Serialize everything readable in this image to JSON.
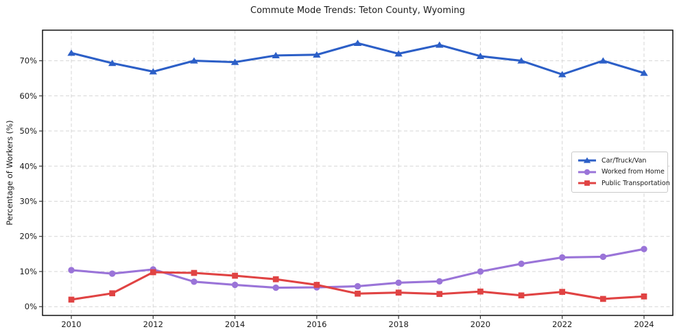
{
  "title": "Commute Mode Trends: Teton County, Wyoming",
  "chart_data": {
    "type": "line",
    "title": "Commute Mode Trends: Teton County, Wyoming",
    "xlabel": "",
    "ylabel": "Percentage of Workers (%)",
    "x": [
      2010,
      2011,
      2012,
      2013,
      2014,
      2015,
      2016,
      2017,
      2018,
      2019,
      2020,
      2021,
      2022,
      2023,
      2024
    ],
    "xticks": [
      2010,
      2012,
      2014,
      2016,
      2018,
      2020,
      2022,
      2024
    ],
    "ytick_values": [
      0,
      10,
      20,
      30,
      40,
      50,
      60,
      70
    ],
    "ytick_labels": [
      "0%",
      "10%",
      "20%",
      "30%",
      "40%",
      "50%",
      "60%",
      "70%"
    ],
    "ylim": [
      -2.5,
      78.7
    ],
    "grid": true,
    "grid_style": "dashed",
    "legend_position": "center-right",
    "axis_text_color": "#1a1a1a",
    "grid_color": "#d6d6d6",
    "series": [
      {
        "name": "Car/Truck/Van",
        "color": "#2c5fc7",
        "marker": "triangle",
        "values": [
          72.2,
          69.3,
          66.9,
          70.0,
          69.6,
          71.5,
          71.7,
          75.0,
          72.0,
          74.5,
          71.3,
          70.0,
          66.1,
          70.0,
          66.5
        ]
      },
      {
        "name": "Worked from Home",
        "color": "#9a74d8",
        "marker": "circle",
        "values": [
          10.4,
          9.4,
          10.6,
          7.1,
          6.2,
          5.4,
          5.5,
          5.8,
          6.8,
          7.2,
          10.0,
          12.2,
          14.0,
          14.2,
          16.4
        ]
      },
      {
        "name": "Public Transportation",
        "color": "#e04343",
        "marker": "square",
        "values": [
          2.0,
          3.8,
          9.8,
          9.6,
          8.8,
          7.8,
          6.2,
          3.7,
          4.0,
          3.6,
          4.3,
          3.2,
          4.2,
          2.2,
          2.9
        ]
      }
    ]
  }
}
